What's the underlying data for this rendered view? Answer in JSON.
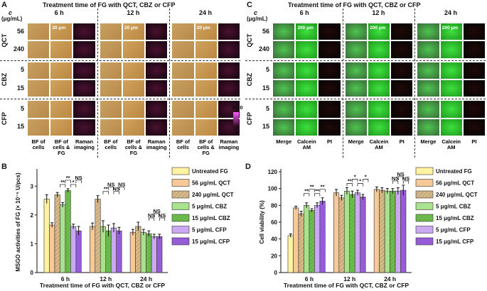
{
  "panels": {
    "a": {
      "label": "A",
      "title": "Treatment time of FG with QCT, CBZ or CFP",
      "c": "c",
      "unit": "(μg/mL)",
      "times": [
        "6 h",
        "12 h",
        "24 h"
      ],
      "groups": [
        {
          "name": "QCT",
          "rows": [
            "56",
            "240"
          ]
        },
        {
          "name": "CBZ",
          "rows": [
            "5",
            "15"
          ]
        },
        {
          "name": "CFP",
          "rows": [
            "5",
            "15"
          ]
        }
      ],
      "columns": [
        "BF of cells",
        "BF of cells & FG",
        "Raman imaging"
      ],
      "scale_bar": "20 μm",
      "colorbar": [
        0,
        2000
      ]
    },
    "c": {
      "label": "C",
      "title": "Treatment time of FG with QCT, CBZ or CFP",
      "c": "c",
      "unit": "(μg/mL)",
      "times": [
        "6 h",
        "12 h",
        "24 h"
      ],
      "groups": [
        {
          "name": "QCT",
          "rows": [
            "56",
            "240"
          ]
        },
        {
          "name": "CBZ",
          "rows": [
            "5",
            "15"
          ]
        },
        {
          "name": "CFP",
          "rows": [
            "5",
            "15"
          ]
        }
      ],
      "columns": [
        "Merge",
        "Calcein AM",
        "PI"
      ],
      "scale_bar": "200 μm"
    }
  },
  "chart_data": [
    {
      "type": "bar",
      "label": "B",
      "xlabel": "Treatment time of FG with QCT, CBZ or CFP",
      "ylabel": "MSGO activities of FG (× 10⁻⁵ U/pcs)",
      "categories": [
        "6 h",
        "12 h",
        "24 h"
      ],
      "ylim": [
        0,
        3.5
      ],
      "yticks": [
        0,
        1,
        2,
        3
      ],
      "series": [
        {
          "name": "Untreated FG",
          "color": "#fff2a0",
          "hatch": false,
          "values": [
            2.55,
            null,
            null
          ],
          "errors": [
            0.15,
            null,
            null
          ]
        },
        {
          "name": "56 μg/mL QCT",
          "color": "#f7c898",
          "hatch": false,
          "values": [
            1.65,
            1.6,
            1.4
          ],
          "errors": [
            0.08,
            0.12,
            0.1
          ]
        },
        {
          "name": "240 μg/mL QCT",
          "color": "#d8b988",
          "hatch": true,
          "values": [
            2.7,
            2.55,
            1.6
          ],
          "errors": [
            0.08,
            0.12,
            0.15
          ]
        },
        {
          "name": "5 μg/mL CBZ",
          "color": "#a9e28c",
          "hatch": false,
          "values": [
            2.35,
            1.6,
            1.4
          ],
          "errors": [
            0.08,
            0.2,
            0.1
          ]
        },
        {
          "name": "15 μg/mL CBZ",
          "color": "#6cc04a",
          "hatch": true,
          "values": [
            2.85,
            1.45,
            1.35
          ],
          "errors": [
            0.06,
            0.2,
            0.1
          ]
        },
        {
          "name": "5 μg/mL CFP",
          "color": "#caa8f2",
          "hatch": false,
          "values": [
            1.6,
            1.55,
            1.25
          ],
          "errors": [
            0.08,
            0.15,
            0.08
          ]
        },
        {
          "name": "15 μg/mL CFP",
          "color": "#9a5ce0",
          "hatch": true,
          "values": [
            1.45,
            1.45,
            1.25
          ],
          "errors": [
            0.15,
            0.12,
            0.08
          ]
        }
      ],
      "annotations": [
        [
          "**",
          "**",
          "*",
          "NS"
        ],
        [
          "**",
          "NS",
          "NS",
          "NS"
        ],
        [
          "NS",
          "NS",
          "NS"
        ]
      ]
    },
    {
      "type": "bar",
      "label": "D",
      "xlabel": "Treatment time of FG with QCT, CBZ or CFP",
      "ylabel": "Cell viability (%)",
      "categories": [
        "6 h",
        "12 h",
        "24 h"
      ],
      "ylim": [
        0,
        120
      ],
      "yticks": [
        0,
        20,
        40,
        60,
        80,
        100,
        120
      ],
      "series": [
        {
          "name": "Untreated FG",
          "color": "#fff2a0",
          "hatch": false,
          "values": [
            44,
            null,
            null
          ],
          "errors": [
            2,
            null,
            null
          ]
        },
        {
          "name": "56 μg/mL QCT",
          "color": "#f7c898",
          "hatch": false,
          "values": [
            77,
            95,
            99
          ],
          "errors": [
            2,
            4,
            3
          ]
        },
        {
          "name": "240 μg/mL QCT",
          "color": "#d8b988",
          "hatch": true,
          "values": [
            70,
            89,
            98
          ],
          "errors": [
            3,
            3,
            3
          ]
        },
        {
          "name": "5 μg/mL CBZ",
          "color": "#a9e28c",
          "hatch": false,
          "values": [
            80,
            97,
            97
          ],
          "errors": [
            3,
            4,
            3
          ]
        },
        {
          "name": "15 μg/mL CBZ",
          "color": "#6cc04a",
          "hatch": true,
          "values": [
            74,
            93,
            97
          ],
          "errors": [
            2,
            4,
            3
          ]
        },
        {
          "name": "5 μg/mL CFP",
          "color": "#caa8f2",
          "hatch": false,
          "values": [
            80,
            95,
            97
          ],
          "errors": [
            3,
            3,
            4
          ]
        },
        {
          "name": "15 μg/mL CFP",
          "color": "#9a5ce0",
          "hatch": true,
          "values": [
            85,
            90,
            98
          ],
          "errors": [
            4,
            3,
            6
          ]
        }
      ],
      "annotations": [
        [
          "**",
          "**",
          "**",
          "**"
        ],
        [
          "**",
          "*",
          "*",
          "*"
        ],
        [
          "NS",
          "NS",
          "NS"
        ]
      ]
    }
  ]
}
